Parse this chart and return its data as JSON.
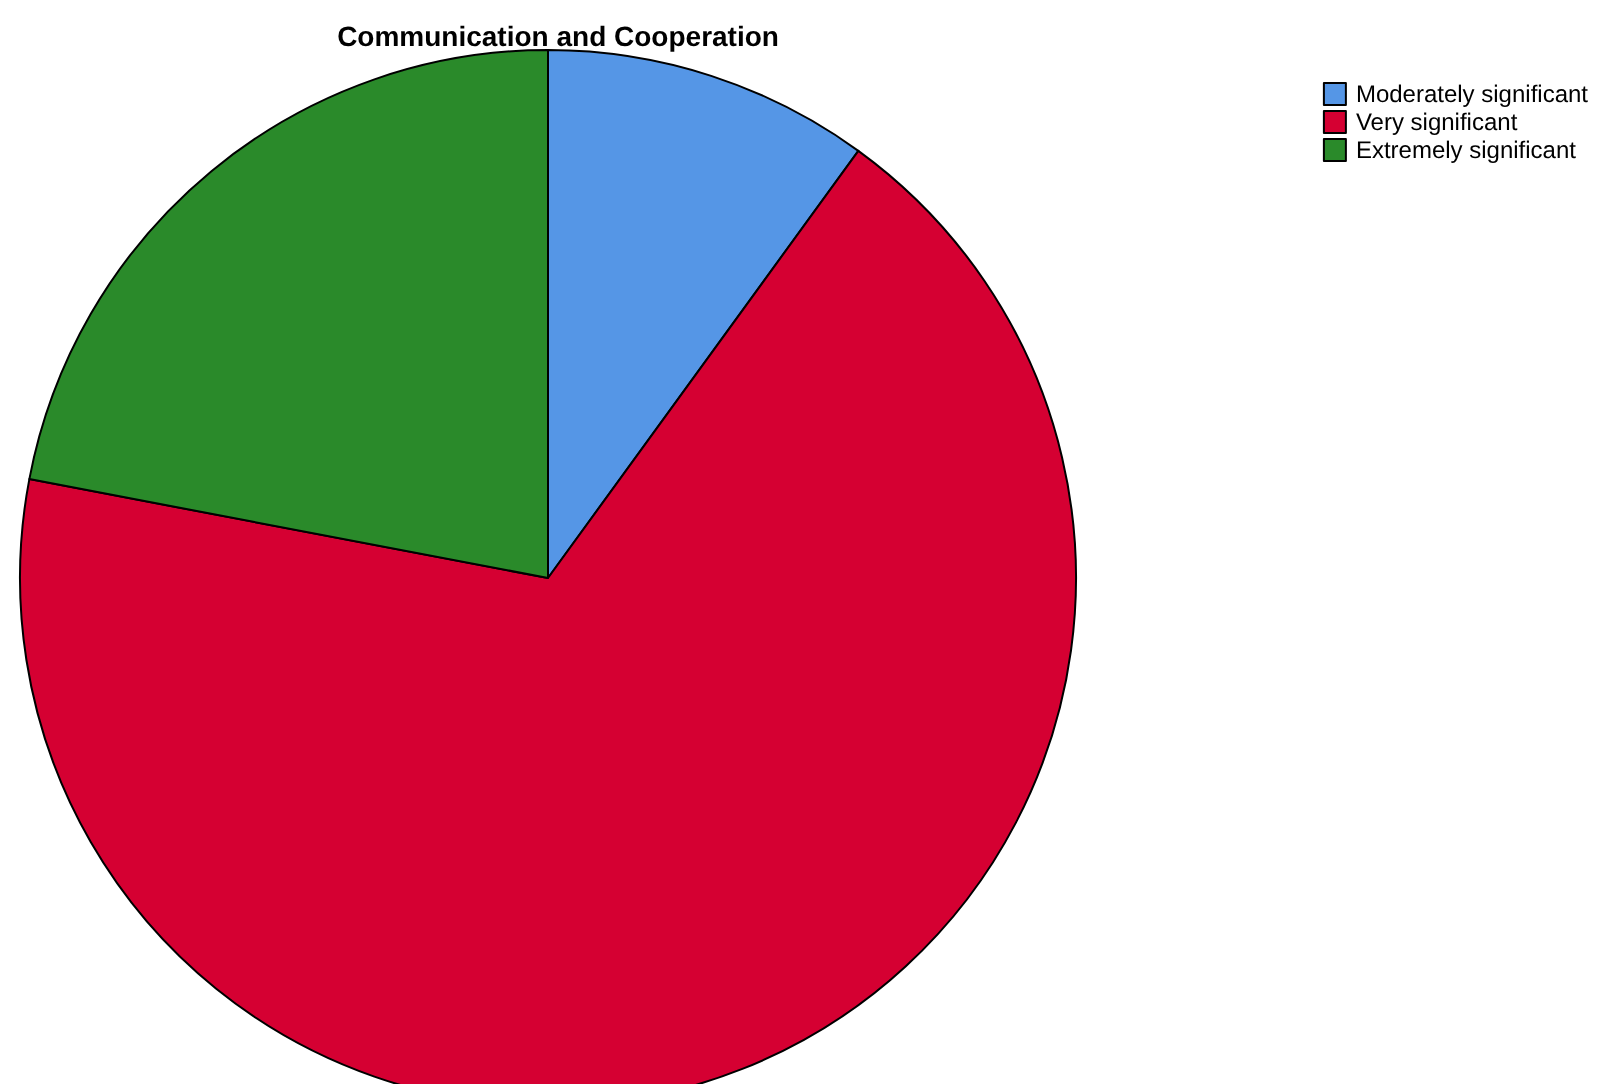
{
  "chart_data": {
    "type": "pie",
    "title": "Communication and Cooperation",
    "categories": [
      "Moderately significant",
      "Very significant",
      "Extremely significant"
    ],
    "values": [
      10,
      68,
      22
    ],
    "colors": [
      "#5596e6",
      "#d50032",
      "#2a8a2a"
    ],
    "legend": "top right"
  }
}
